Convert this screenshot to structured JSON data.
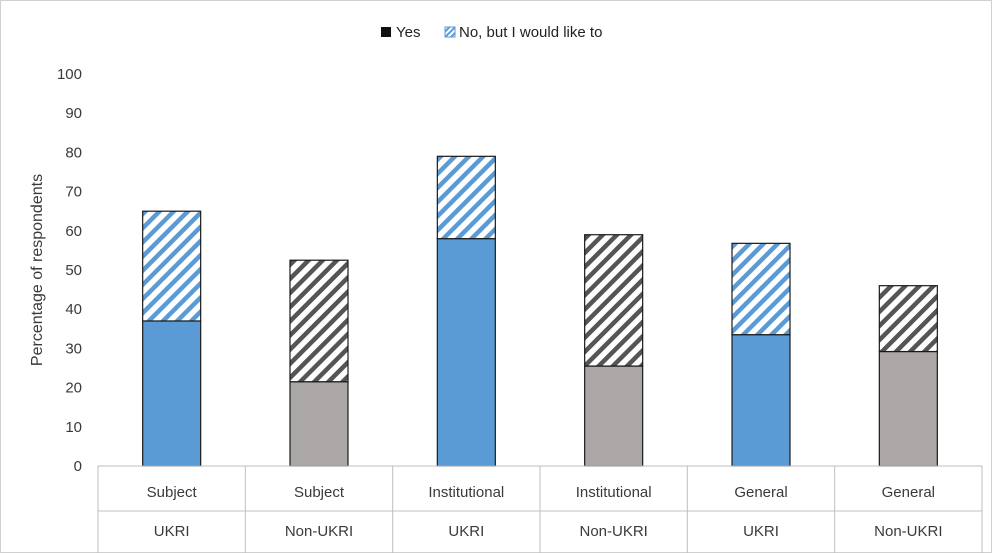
{
  "chart_data": {
    "type": "bar",
    "stacked": true,
    "ylabel": "Percentage of respondents",
    "ylim": [
      0,
      100
    ],
    "yticks": [
      0,
      10,
      20,
      30,
      40,
      50,
      60,
      70,
      80,
      90,
      100
    ],
    "categories": [
      {
        "level1": "Subject",
        "level2": "UKRI"
      },
      {
        "level1": "Subject",
        "level2": "Non-UKRI"
      },
      {
        "level1": "Institutional",
        "level2": "UKRI"
      },
      {
        "level1": "Institutional",
        "level2": "Non-UKRI"
      },
      {
        "level1": "General",
        "level2": "UKRI"
      },
      {
        "level1": "General",
        "level2": "Non-UKRI"
      }
    ],
    "series": [
      {
        "name": "Yes",
        "values": [
          37,
          21.5,
          58,
          25.5,
          33.5,
          29.2
        ]
      },
      {
        "name": "No, but I would like to",
        "values": [
          28,
          31,
          21,
          33.5,
          23.3,
          16.8
        ]
      }
    ],
    "bar_colors": [
      "#5b9bd5",
      "#aba7a6",
      "#5b9bd5",
      "#aba7a6",
      "#5b9bd5",
      "#aba7a6"
    ],
    "hatch_colors": [
      "#5b9bd5",
      "#555555",
      "#5b9bd5",
      "#555555",
      "#5b9bd5",
      "#555555"
    ],
    "legend": {
      "position": "top",
      "items": [
        {
          "label": "Yes",
          "swatch": "solid",
          "color": "#111111"
        },
        {
          "label": "No, but I would like to",
          "swatch": "hatched",
          "color": "#5b9bd5"
        }
      ]
    },
    "grid": false
  }
}
